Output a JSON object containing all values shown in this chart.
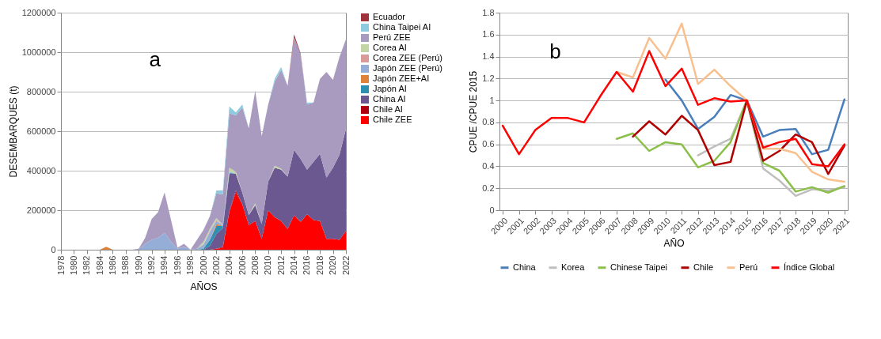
{
  "chart_data": [
    {
      "type": "area",
      "stacked": true,
      "xlabel": "AÑOS",
      "ylabel": "DESEMBARQUES (t)",
      "annotations": [
        "a"
      ],
      "grid": "y",
      "legend": "right",
      "x": [
        1984,
        1985,
        1986,
        1987,
        1988,
        1989,
        1990,
        1991,
        1992,
        1993,
        1994,
        1995,
        1996,
        1997,
        1998,
        1999,
        2000,
        2001,
        2002,
        2003,
        2004,
        2005,
        2006,
        2007,
        2008,
        2009,
        2010,
        2011,
        2012,
        2013,
        2014,
        2015,
        2016,
        2017,
        2018,
        2019,
        2020,
        2021,
        2022
      ],
      "xlim": [
        1978,
        2022
      ],
      "xticks": [
        1978,
        1980,
        1982,
        1984,
        1986,
        1988,
        1990,
        1992,
        1994,
        1996,
        1998,
        2000,
        2002,
        2004,
        2006,
        2008,
        2010,
        2012,
        2014,
        2016,
        2018,
        2020,
        2022
      ],
      "ylim": [
        0,
        1200000
      ],
      "yticks": [
        0,
        200000,
        400000,
        600000,
        800000,
        1000000,
        1200000
      ],
      "series": [
        {
          "name": "Chile ZEE",
          "color": "#ff0000",
          "values": [
            null,
            null,
            null,
            null,
            null,
            null,
            null,
            null,
            null,
            null,
            null,
            null,
            null,
            null,
            null,
            null,
            null,
            0,
            5000,
            10000,
            190000,
            290000,
            230000,
            125000,
            145000,
            55000,
            200000,
            165000,
            145000,
            105000,
            175000,
            140000,
            180000,
            150000,
            145000,
            55000,
            55000,
            50000,
            95000
          ]
        },
        {
          "name": "Chile AI",
          "color": "#b00010",
          "values": [
            null,
            null,
            null,
            null,
            null,
            null,
            null,
            null,
            null,
            null,
            null,
            null,
            null,
            null,
            null,
            null,
            null,
            null,
            0,
            5000,
            5000,
            10000,
            0,
            null,
            null,
            null,
            null,
            null,
            null,
            null,
            null,
            null,
            null,
            null,
            null,
            null,
            null,
            null,
            null
          ]
        },
        {
          "name": "China AI",
          "color": "#6b5890",
          "values": [
            null,
            null,
            null,
            null,
            null,
            null,
            null,
            null,
            null,
            null,
            null,
            null,
            null,
            null,
            null,
            null,
            0,
            20000,
            75000,
            95000,
            190000,
            85000,
            60000,
            50000,
            80000,
            75000,
            145000,
            250000,
            260000,
            265000,
            330000,
            320000,
            225000,
            295000,
            340000,
            310000,
            360000,
            430000,
            515000
          ]
        },
        {
          "name": "Japón AI",
          "color": "#2e90b0",
          "values": [
            null,
            null,
            null,
            null,
            null,
            null,
            null,
            null,
            null,
            null,
            null,
            null,
            null,
            null,
            null,
            0,
            5000,
            30000,
            40000,
            10000,
            5000,
            0,
            null,
            null,
            null,
            null,
            null,
            null,
            null,
            null,
            null,
            null,
            null,
            null,
            null,
            null,
            null,
            null,
            null
          ]
        },
        {
          "name": "Japón ZEE+AI",
          "color": "#e0833a",
          "values": [
            0,
            15000,
            0,
            null,
            null,
            null,
            null,
            null,
            null,
            null,
            null,
            null,
            null,
            null,
            null,
            null,
            null,
            0,
            10000,
            0,
            null,
            null,
            null,
            null,
            null,
            null,
            null,
            null,
            null,
            null,
            null,
            null,
            null,
            null,
            null,
            null,
            null,
            null,
            null
          ]
        },
        {
          "name": "Japón ZEE (Perú)",
          "color": "#95aed8",
          "values": [
            null,
            null,
            null,
            null,
            null,
            null,
            0,
            30000,
            50000,
            60000,
            85000,
            40000,
            5000,
            15000,
            0,
            5000,
            20000,
            40000,
            15000,
            5000,
            5000,
            0,
            null,
            null,
            null,
            null,
            null,
            null,
            null,
            null,
            null,
            null,
            null,
            null,
            null,
            null,
            null,
            null,
            null
          ]
        },
        {
          "name": "Corea ZEE (Perú)",
          "color": "#d99a9a",
          "values": [
            null,
            null,
            null,
            null,
            null,
            null,
            null,
            null,
            null,
            null,
            null,
            null,
            null,
            null,
            null,
            null,
            0,
            5000,
            5000,
            0,
            null,
            null,
            null,
            null,
            null,
            null,
            null,
            null,
            null,
            null,
            null,
            null,
            null,
            null,
            null,
            null,
            null,
            null,
            null
          ]
        },
        {
          "name": "Corea AI",
          "color": "#c3d4a5",
          "values": [
            null,
            null,
            null,
            null,
            null,
            null,
            null,
            null,
            null,
            null,
            null,
            null,
            null,
            null,
            null,
            0,
            15000,
            10000,
            10000,
            0,
            20000,
            10000,
            0,
            0,
            10000,
            0,
            0,
            10000,
            5000,
            0,
            null,
            null,
            null,
            null,
            null,
            null,
            null,
            null,
            null
          ]
        },
        {
          "name": "Perú ZEE",
          "color": "#a99bc0",
          "values": [
            null,
            null,
            null,
            null,
            null,
            0,
            5000,
            30000,
            105000,
            130000,
            205000,
            110000,
            5000,
            15000,
            0,
            45000,
            60000,
            65000,
            125000,
            155000,
            275000,
            285000,
            430000,
            440000,
            570000,
            445000,
            390000,
            425000,
            500000,
            460000,
            570000,
            530000,
            330000,
            300000,
            380000,
            535000,
            445000,
            495000,
            455000
          ]
        },
        {
          "name": "China Taipei AI",
          "color": "#8ecae0",
          "values": [
            null,
            null,
            null,
            null,
            null,
            null,
            null,
            null,
            null,
            null,
            null,
            null,
            null,
            null,
            null,
            null,
            null,
            0,
            15000,
            20000,
            35000,
            15000,
            15000,
            0,
            null,
            null,
            0,
            15000,
            15000,
            0,
            null,
            0,
            10000,
            0,
            null,
            null,
            null,
            null,
            null
          ]
        },
        {
          "name": "Ecuador",
          "color": "#a0323c",
          "values": [
            null,
            null,
            null,
            null,
            null,
            null,
            null,
            null,
            null,
            null,
            null,
            null,
            null,
            null,
            null,
            null,
            null,
            null,
            null,
            null,
            null,
            null,
            null,
            null,
            null,
            null,
            null,
            null,
            null,
            0,
            15000,
            5000,
            0,
            null,
            null,
            null,
            null,
            null,
            null
          ]
        }
      ]
    },
    {
      "type": "line",
      "xlabel": "AÑO",
      "ylabel": "CPUE /CPUE 2015",
      "annotations": [
        "b"
      ],
      "grid": "y",
      "legend": "bottom",
      "line_style": "solid",
      "categories": [
        "2000",
        "2001",
        "2002",
        "2003",
        "2004",
        "2005",
        "2006",
        "2007",
        "2008",
        "2009",
        "2010",
        "2011",
        "2012",
        "2013",
        "2014",
        "2015",
        "2016",
        "2017",
        "2018",
        "2019",
        "2020",
        "2021"
      ],
      "ylim": [
        0,
        1.8
      ],
      "yticks": [
        0,
        0.2,
        0.4,
        0.6,
        0.8,
        1,
        1.2,
        1.4,
        1.6,
        1.8
      ],
      "series": [
        {
          "name": "China",
          "color": "#4a7ebb",
          "values": [
            null,
            null,
            null,
            null,
            null,
            null,
            null,
            null,
            null,
            null,
            1.19,
            1.0,
            0.74,
            0.85,
            1.05,
            1.0,
            0.67,
            0.73,
            0.74,
            0.51,
            0.55,
            1.01
          ]
        },
        {
          "name": "Korea",
          "color": "#bfbfbf",
          "values": [
            null,
            null,
            null,
            null,
            null,
            null,
            null,
            null,
            null,
            null,
            null,
            null,
            0.5,
            0.58,
            0.65,
            1.0,
            0.38,
            0.27,
            0.13,
            0.19,
            0.18,
            0.21
          ]
        },
        {
          "name": "Chinese Taipei",
          "color": "#8cbf4a",
          "values": [
            null,
            null,
            null,
            null,
            null,
            null,
            null,
            0.65,
            0.7,
            0.54,
            0.62,
            0.6,
            0.39,
            0.45,
            0.62,
            1.0,
            0.43,
            0.36,
            0.17,
            0.21,
            0.16,
            0.22
          ]
        },
        {
          "name": "Chile",
          "color": "#b00000",
          "values": [
            null,
            null,
            null,
            null,
            null,
            null,
            null,
            null,
            0.67,
            0.81,
            0.69,
            0.86,
            0.73,
            0.41,
            0.44,
            1.0,
            0.45,
            0.54,
            0.69,
            0.62,
            0.33,
            0.59
          ]
        },
        {
          "name": "Perú",
          "color": "#f9c08f",
          "values": [
            null,
            null,
            null,
            null,
            null,
            null,
            null,
            1.26,
            1.21,
            1.57,
            1.38,
            1.7,
            1.15,
            1.28,
            1.13,
            1.0,
            0.56,
            0.56,
            0.52,
            0.35,
            0.28,
            0.26
          ]
        },
        {
          "name": "Índice Global",
          "color": "#ff0000",
          "values": [
            0.77,
            0.51,
            0.73,
            0.84,
            0.84,
            0.8,
            1.04,
            1.26,
            1.08,
            1.45,
            1.13,
            1.29,
            0.96,
            1.02,
            0.99,
            1.0,
            0.57,
            0.62,
            0.65,
            0.42,
            0.4,
            0.6
          ]
        }
      ]
    }
  ]
}
